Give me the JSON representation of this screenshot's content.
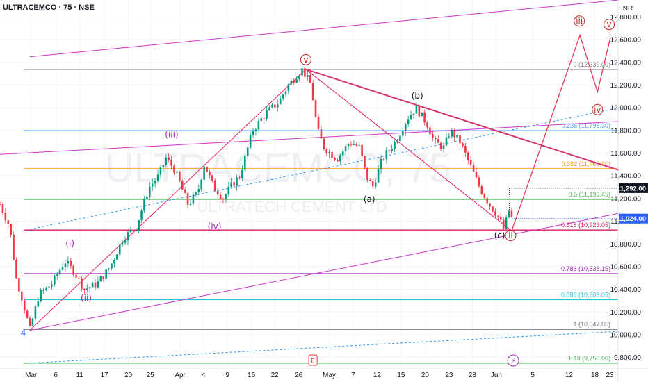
{
  "header": {
    "title": "ULTRACEMCO · 75 · NSE",
    "currency": "INR"
  },
  "watermark": {
    "symbol": "ULTRACEMCO, 75",
    "name": "ULTRATECH CEMENT LTD"
  },
  "chart_data": {
    "type": "candlestick",
    "title": "ULTRACEMCO · 75 · NSE",
    "y_unit": "INR",
    "ylim": [
      9700,
      12950
    ],
    "y_ticks": [
      9800,
      10000,
      10200,
      10400,
      10600,
      10800,
      11000,
      11200,
      11400,
      11600,
      11800,
      12000,
      12200,
      12400,
      12600,
      12800
    ],
    "y_tick_labels": [
      "9,800.00",
      "10,000.00",
      "10,200.00",
      "10,400.00",
      "10,600.00",
      "10,800.00",
      "11,000.00",
      "11,200.00",
      "11,400.00",
      "11,600.00",
      "11,800.00",
      "12,000.00",
      "12,200.00",
      "12,400.00",
      "12,600.00",
      "12,800.00"
    ],
    "x_ticks": [
      "Mar",
      "6",
      "11",
      "17",
      "20",
      "25",
      "Apr",
      "4",
      "9",
      "16",
      "22",
      "26",
      "May",
      "7",
      "12",
      "15",
      "20",
      "23",
      "28",
      "Jun",
      "5",
      "12",
      "18",
      "23"
    ],
    "x_range": [
      0,
      100
    ],
    "x_tick_positions": [
      4.8,
      8.6,
      12.3,
      16.1,
      19.8,
      23.2,
      27.8,
      31.4,
      35.1,
      38.8,
      42.4,
      46.1,
      50.8,
      54.5,
      58.2,
      61.9,
      65.6,
      69.3,
      72.9,
      76.6,
      82.2,
      87.8,
      91.8,
      94.1
    ],
    "price_path": [
      [
        0,
        11150
      ],
      [
        1.5,
        10950
      ],
      [
        2.5,
        10500
      ],
      [
        3.5,
        10300
      ],
      [
        4.6,
        10040
      ],
      [
        6,
        10350
      ],
      [
        8,
        10450
      ],
      [
        10,
        10650
      ],
      [
        11.5,
        10550
      ],
      [
        13,
        10400
      ],
      [
        15,
        10450
      ],
      [
        17,
        10600
      ],
      [
        19,
        10850
      ],
      [
        21,
        10950
      ],
      [
        23,
        11300
      ],
      [
        24.5,
        11400
      ],
      [
        25.6,
        11560
      ],
      [
        27,
        11450
      ],
      [
        28,
        11300
      ],
      [
        29,
        11150
      ],
      [
        30.5,
        11250
      ],
      [
        31.5,
        11500
      ],
      [
        33,
        11300
      ],
      [
        34.5,
        11200
      ],
      [
        35.5,
        11300
      ],
      [
        37,
        11400
      ],
      [
        39,
        11800
      ],
      [
        41,
        11950
      ],
      [
        43,
        12050
      ],
      [
        44.5,
        12200
      ],
      [
        46.6,
        12340
      ],
      [
        48,
        12200
      ],
      [
        49,
        11800
      ],
      [
        50,
        11650
      ],
      [
        52,
        11550
      ],
      [
        54,
        11700
      ],
      [
        55.5,
        11650
      ],
      [
        56.5,
        11400
      ],
      [
        57.5,
        11300
      ],
      [
        59,
        11550
      ],
      [
        61,
        11700
      ],
      [
        62.8,
        11900
      ],
      [
        64.2,
        12000
      ],
      [
        66,
        11850
      ],
      [
        67,
        11700
      ],
      [
        68.5,
        11650
      ],
      [
        69.5,
        11800
      ],
      [
        71,
        11700
      ],
      [
        72.5,
        11500
      ],
      [
        74,
        11300
      ],
      [
        75.5,
        11150
      ],
      [
        76.8,
        11050
      ],
      [
        77.8,
        10923
      ],
      [
        78.5,
        11100
      ],
      [
        79,
        11024
      ]
    ],
    "current_price": "11,024.00",
    "marked_price": "11,292.00",
    "fib_levels": [
      {
        "label": "0 (12,339.00)",
        "value": 12339,
        "color": "#787b86"
      },
      {
        "label": "0.236 (11,798.30)",
        "value": 11798.3,
        "color": "#5b9cf6"
      },
      {
        "label": "0.382 (11,463.80)",
        "value": 11463.8,
        "color": "#f7a21b"
      },
      {
        "label": "0.5 (11,193.45)",
        "value": 11193.45,
        "color": "#4caf50"
      },
      {
        "label": "0.618 (10,923.05)",
        "value": 10923.05,
        "color": "#d81b60"
      },
      {
        "label": "0.786 (10,538.15)",
        "value": 10538.15,
        "color": "#9c27b0"
      },
      {
        "label": "0.886 (10,309.05)",
        "value": 10309.05,
        "color": "#26c6da"
      },
      {
        "label": "1 (10,047.85)",
        "value": 10047.85,
        "color": "#787b86"
      },
      {
        "label": "1.13 (9,750.00)",
        "value": 9750,
        "color": "#4caf50"
      }
    ],
    "wave_labels": [
      {
        "text": "4",
        "x": 3.6,
        "y": 9990,
        "color": "#2962ff",
        "style": "plain"
      },
      {
        "text": "(i)",
        "x": 10.8,
        "y": 10780,
        "color": "#9c27b0",
        "style": "plain"
      },
      {
        "text": "(ii)",
        "x": 13.3,
        "y": 10300,
        "color": "#9c27b0",
        "style": "plain"
      },
      {
        "text": "(iii)",
        "x": 26.5,
        "y": 11740,
        "color": "#9c27b0",
        "style": "plain"
      },
      {
        "text": "(iv)",
        "x": 33.1,
        "y": 10930,
        "color": "#9c27b0",
        "style": "plain"
      },
      {
        "text": "v",
        "x": 47.2,
        "y": 12400,
        "color": "#c62828",
        "style": "circle"
      },
      {
        "text": "(b)",
        "x": 64.4,
        "y": 12080,
        "color": "#131722",
        "style": "plain"
      },
      {
        "text": "(a)",
        "x": 57.0,
        "y": 11170,
        "color": "#131722",
        "style": "plain"
      },
      {
        "text": "(c)",
        "x": 77.1,
        "y": 10850,
        "color": "#131722",
        "style": "plain"
      },
      {
        "text": "ii",
        "x": 78.8,
        "y": 10850,
        "color": "#c62828",
        "style": "circle"
      },
      {
        "text": "iii",
        "x": 89.4,
        "y": 12740,
        "color": "#c62828",
        "style": "circle"
      },
      {
        "text": "iv",
        "x": 92.2,
        "y": 11960,
        "color": "#c62828",
        "style": "circle"
      },
      {
        "text": "v",
        "x": 94.0,
        "y": 12710,
        "color": "#c62828",
        "style": "circle"
      }
    ],
    "projection_path": [
      [
        79,
        10923
      ],
      [
        89.5,
        12640
      ],
      [
        92.2,
        12140
      ],
      [
        94.2,
        12620
      ]
    ],
    "channels": [
      {
        "from": [
          4.6,
          10040
        ],
        "to": [
          95.5,
          11070
        ],
        "color": "#cc33cc"
      },
      {
        "from": [
          4.6,
          12450
        ],
        "to": [
          95.5,
          12950
        ],
        "color": "#cc33cc"
      },
      {
        "from": [
          0,
          11590
        ],
        "to": [
          95.5,
          11880
        ],
        "color": "#cc33cc"
      },
      {
        "from": [
          4.6,
          10930
        ],
        "to": [
          95.5,
          12000
        ],
        "color": "#2196f3",
        "dashed": true
      },
      {
        "from": [
          4.6,
          9750
        ],
        "to": [
          95.5,
          10030
        ],
        "color": "#2196f3",
        "dashed": true
      }
    ],
    "trendlines": [
      {
        "from": [
          47.2,
          12339
        ],
        "to": [
          95.5,
          11450
        ],
        "color": "#d6336c",
        "width": 2
      },
      {
        "from": [
          47.2,
          12339
        ],
        "to": [
          78.8,
          10923
        ],
        "color": "#e91e63",
        "width": 1
      },
      {
        "from": [
          4.6,
          10040
        ],
        "to": [
          47.2,
          12339
        ],
        "color": "#e91e63",
        "width": 1
      }
    ],
    "event_markers": [
      {
        "text": "E",
        "x": 48.3,
        "color": "#e53935",
        "style": "box"
      },
      {
        "text": "⚡",
        "x": 79.2,
        "color": "#9c27b0",
        "style": "circle"
      }
    ]
  }
}
